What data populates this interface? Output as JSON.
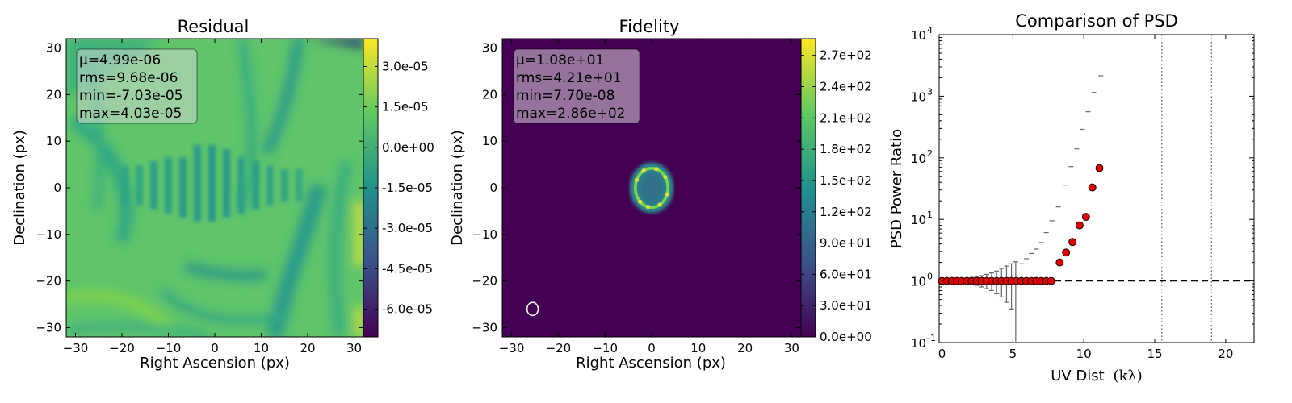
{
  "chart_data": [
    {
      "type": "heatmap",
      "title": "Residual",
      "xlabel": "Right Ascension (px)",
      "ylabel": "Declination (px)",
      "xlim": [
        -32,
        32
      ],
      "ylim": [
        -32,
        32
      ],
      "x_ticks": [
        "−30",
        "−20",
        "−10",
        "0",
        "10",
        "20",
        "30"
      ],
      "y_ticks": [
        "30",
        "20",
        "10",
        "0",
        "−10",
        "−20",
        "−30"
      ],
      "colorbar_ticks": [
        "3.0e-05",
        "1.5e-05",
        "0.0e+00",
        "-1.5e-05",
        "-3.0e-05",
        "-4.5e-05",
        "-6.0e-05"
      ],
      "colorbar_range": [
        -7.03e-05,
        4.03e-05
      ],
      "colormap": [
        "#440154",
        "#3b528b",
        "#21918c",
        "#5ec962",
        "#fde725"
      ],
      "stats": [
        "μ=4.99e-06",
        "rms=9.68e-06",
        "min=-7.03e-05",
        "max=4.03e-05"
      ]
    },
    {
      "type": "heatmap",
      "title": "Fidelity",
      "xlabel": "Right Ascension (px)",
      "ylabel": "Declination (px)",
      "xlim": [
        -32,
        32
      ],
      "ylim": [
        -32,
        32
      ],
      "x_ticks": [
        "−30",
        "−20",
        "−10",
        "0",
        "10",
        "20",
        "30"
      ],
      "y_ticks": [
        "30",
        "20",
        "10",
        "0",
        "−10",
        "−20",
        "−30"
      ],
      "colorbar_ticks": [
        "2.7e+02",
        "2.4e+02",
        "2.1e+02",
        "1.8e+02",
        "1.5e+02",
        "1.2e+02",
        "9.0e+01",
        "6.0e+01",
        "3.0e+01",
        "0.0e+00"
      ],
      "colorbar_range": [
        0,
        286
      ],
      "colormap": [
        "#440154",
        "#3b528b",
        "#21918c",
        "#5ec962",
        "#fde725"
      ],
      "stats": [
        "μ=1.08e+01",
        "rms=4.21e+01",
        "min=7.70e-08",
        "max=2.86e+02"
      ],
      "ring": {
        "center": [
          0,
          0
        ],
        "semi_x": 3.5,
        "semi_y": 4.2
      },
      "beam": {
        "center": [
          -25.5,
          -26
        ],
        "semi_x": 1.2,
        "semi_y": 1.4
      }
    },
    {
      "type": "scatter",
      "title": "Comparison of PSD",
      "xlabel": "UV Dist",
      "xlabel_math": "(kλ)",
      "ylabel": "PSD Power Ratio",
      "xlim": [
        -0.2,
        22
      ],
      "ylim_log10": [
        -1,
        4
      ],
      "x_ticks": [
        "0",
        "5",
        "10",
        "15",
        "20"
      ],
      "y_ticks_base": "10",
      "y_ticks_exp": [
        "-1",
        "0",
        "1",
        "2",
        "3",
        "4"
      ],
      "reference_line": 1,
      "vertical_lines": [
        15.5,
        19.0
      ],
      "points_x": [
        0.0,
        0.35,
        0.7,
        1.05,
        1.4,
        1.75,
        2.1,
        2.45,
        2.8,
        3.15,
        3.5,
        3.85,
        4.2,
        4.55,
        4.9,
        5.25,
        5.6,
        5.95,
        6.3,
        6.65,
        7.0,
        7.35,
        7.7,
        8.3,
        8.75,
        9.2,
        9.7,
        10.15,
        10.6,
        11.1
      ],
      "points_y": [
        1,
        1,
        1,
        1,
        1,
        1,
        1,
        1,
        1,
        1,
        1,
        1,
        1,
        1,
        1,
        1,
        1,
        1,
        1,
        1,
        1,
        1,
        1,
        2.0,
        2.9,
        4.3,
        8.0,
        11.0,
        33,
        68
      ],
      "errorbars": [
        {
          "x": 2.1,
          "lo": 0.88,
          "hi": 1.14
        },
        {
          "x": 2.45,
          "lo": 0.85,
          "hi": 1.18
        },
        {
          "x": 2.8,
          "lo": 0.8,
          "hi": 1.22
        },
        {
          "x": 3.15,
          "lo": 0.75,
          "hi": 1.28
        },
        {
          "x": 3.5,
          "lo": 0.7,
          "hi": 1.35
        },
        {
          "x": 3.85,
          "lo": 0.62,
          "hi": 1.45
        },
        {
          "x": 4.2,
          "lo": 0.55,
          "hi": 1.6
        },
        {
          "x": 4.55,
          "lo": 0.45,
          "hi": 1.75
        },
        {
          "x": 4.9,
          "lo": 0.35,
          "hi": 1.9
        },
        {
          "x": 5.2,
          "lo": 0.1,
          "hi": 2.05
        }
      ],
      "cap_series": [
        {
          "x": 5.6,
          "y": 1.9
        },
        {
          "x": 5.95,
          "y": 2.3
        },
        {
          "x": 6.3,
          "y": 2.8
        },
        {
          "x": 6.65,
          "y": 3.3
        },
        {
          "x": 7.0,
          "y": 4.2
        },
        {
          "x": 7.35,
          "y": 6.1
        },
        {
          "x": 7.75,
          "y": 9.5
        },
        {
          "x": 8.2,
          "y": 16
        },
        {
          "x": 8.7,
          "y": 36
        },
        {
          "x": 9.1,
          "y": 72
        },
        {
          "x": 9.5,
          "y": 140
        },
        {
          "x": 9.9,
          "y": 290
        },
        {
          "x": 10.3,
          "y": 560
        },
        {
          "x": 10.7,
          "y": 1150
        },
        {
          "x": 11.2,
          "y": 2150
        }
      ]
    }
  ]
}
